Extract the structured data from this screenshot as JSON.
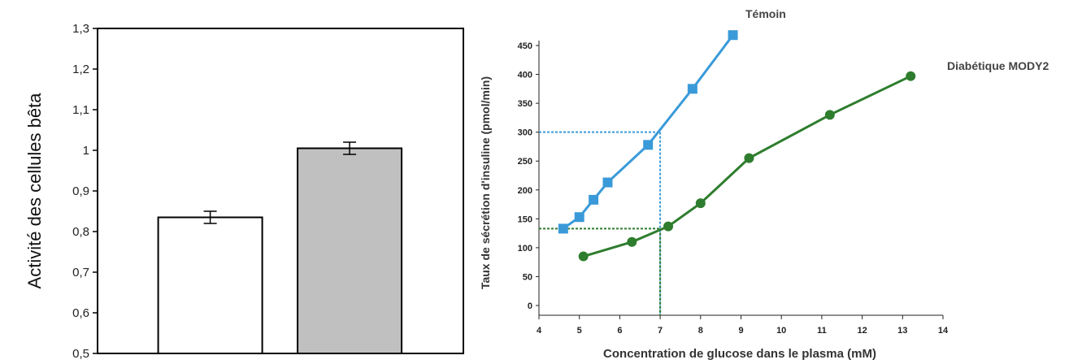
{
  "chart_data": [
    {
      "type": "bar",
      "ylabel": "Activité des cellules bêta",
      "ylim": [
        0.5,
        1.3
      ],
      "yticks": [
        "0,5",
        "0,6",
        "0,7",
        "0,8",
        "0,9",
        "1",
        "1,1",
        "1,2",
        "1,3"
      ],
      "categories": [
        "",
        ""
      ],
      "values": [
        0.835,
        1.005
      ],
      "errors": [
        0.015,
        0.015
      ],
      "bar_colors": [
        "#ffffff",
        "#c0c0c0"
      ],
      "grid": false
    },
    {
      "type": "line",
      "xlabel": "Concentration de glucose dans le plasma (mM)",
      "ylabel": "Taux de sécrétion d'insuline (pmol/min)",
      "xlim": [
        4,
        14
      ],
      "ylim": [
        0,
        450
      ],
      "xticks": [
        "4",
        "5",
        "6",
        "7",
        "8",
        "9",
        "10",
        "11",
        "12",
        "13",
        "14"
      ],
      "yticks": [
        "0",
        "50",
        "100",
        "150",
        "200",
        "250",
        "300",
        "350",
        "400",
        "450"
      ],
      "series": [
        {
          "name": "Témoin",
          "color": "#3a9ad9",
          "marker": "square",
          "x": [
            4.6,
            5.0,
            5.35,
            5.7,
            6.7,
            7.8,
            8.8
          ],
          "y": [
            133,
            153,
            183,
            213,
            278,
            375,
            468
          ]
        },
        {
          "name": "Diabétique MODY2",
          "color": "#2e7d2e",
          "marker": "circle",
          "x": [
            5.1,
            6.3,
            7.2,
            8.0,
            9.2,
            11.2,
            13.2
          ],
          "y": [
            85,
            110,
            137,
            177,
            255,
            330,
            397
          ]
        }
      ],
      "reference_lines": [
        {
          "x": 7,
          "y": 300,
          "color": "#3a9ad9"
        },
        {
          "x": 7,
          "y": 133,
          "color": "#2e7d2e"
        }
      ],
      "grid": false
    }
  ]
}
